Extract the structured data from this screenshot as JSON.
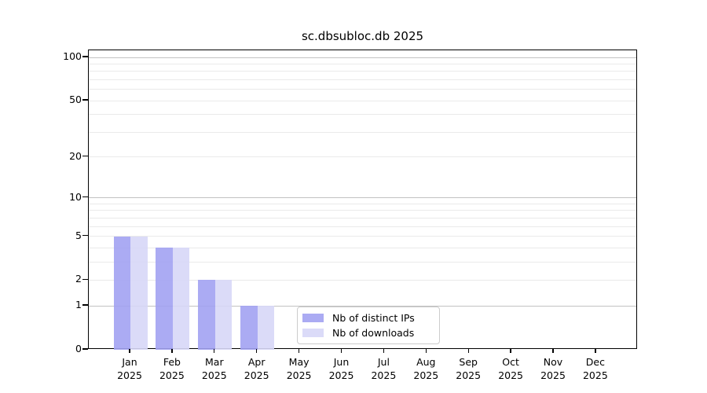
{
  "chart_data": {
    "type": "bar",
    "title": "sc.dbsubloc.db 2025",
    "categories": [
      "Jan",
      "Feb",
      "Mar",
      "Apr",
      "May",
      "Jun",
      "Jul",
      "Aug",
      "Sep",
      "Oct",
      "Nov",
      "Dec"
    ],
    "x_tick_year": "2025",
    "series": [
      {
        "name": "Nb of distinct IPs",
        "color": "#a2a2f2",
        "values": [
          5,
          4,
          2,
          1,
          0,
          0,
          0,
          0,
          0,
          0,
          0,
          0
        ]
      },
      {
        "name": "Nb of downloads",
        "color": "#d7d7f7",
        "values": [
          5,
          4,
          2,
          1,
          0,
          0,
          0,
          0,
          0,
          0,
          0,
          0
        ]
      }
    ],
    "fill_opacity": 0.9,
    "xlabel": "",
    "ylabel": "",
    "yscale": "log1p",
    "ylim": [
      0,
      100
    ],
    "yticks": [
      100,
      50,
      20,
      10,
      5,
      2,
      1,
      0
    ],
    "major_grid_values": [
      1,
      10,
      100
    ],
    "minor_grid_values": [
      2,
      3,
      4,
      5,
      6,
      7,
      8,
      9,
      20,
      30,
      40,
      50,
      60,
      70,
      80,
      90
    ],
    "grid": true,
    "legend_position": "lower center"
  },
  "colors": {
    "background": "#ffffff",
    "axis": "#000000",
    "text": "#000000",
    "grid_major": "#c2c2c2",
    "grid_minor": "#eaeaea",
    "legend_border": "#cccccc"
  }
}
